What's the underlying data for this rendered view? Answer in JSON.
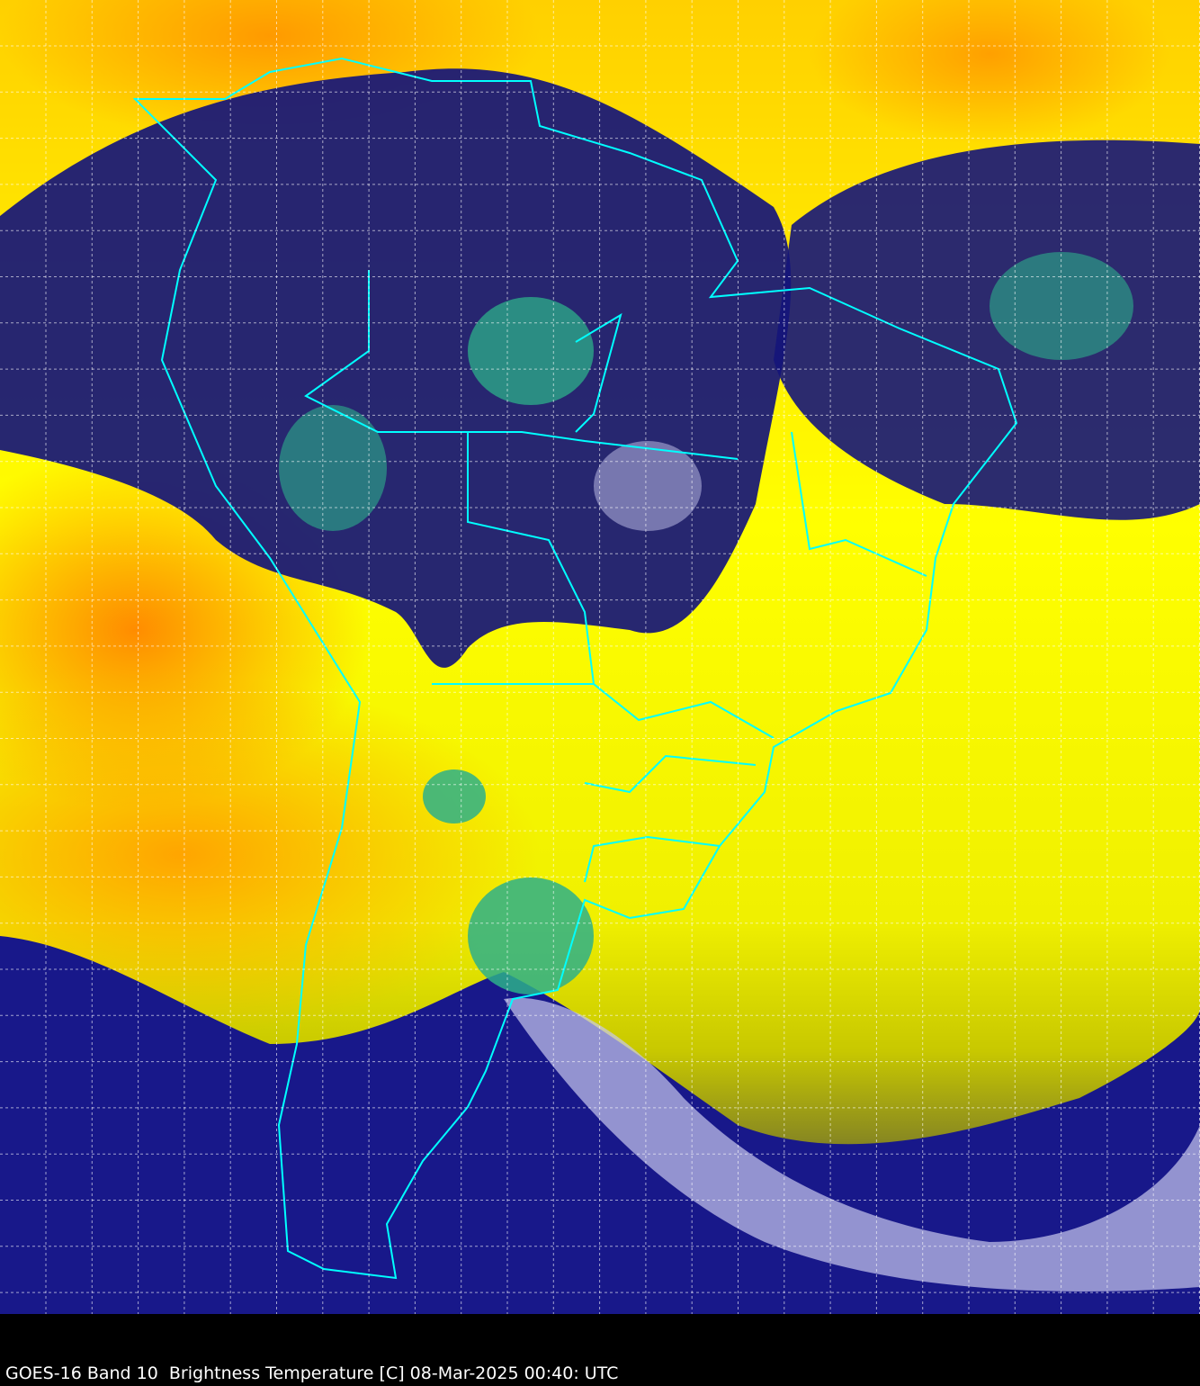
{
  "caption": "GOES-16 Band 10  Brightness Temperature [C] 08-Mar-2025 00:40: UTC",
  "colors": {
    "border": "#00ffff",
    "grid": "#ffffff",
    "warm": "#ffff00",
    "hot": "#ff8c00",
    "cold": "#1a1a80",
    "coldest": "#2db08a"
  }
}
